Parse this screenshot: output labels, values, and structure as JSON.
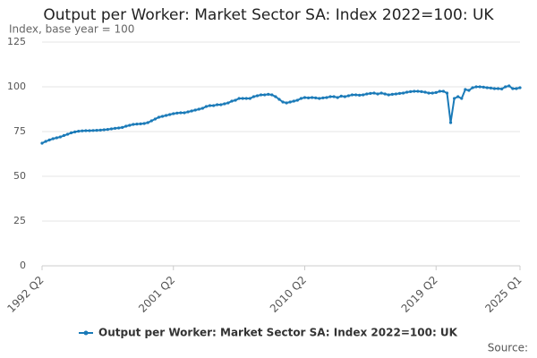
{
  "chart_data": {
    "type": "line",
    "title": "Output per Worker: Market Sector SA: Index 2022=100: UK",
    "subtitle": "Index, base year = 100",
    "source": "Source:",
    "categories": [
      "1992 Q2",
      null,
      null,
      null,
      null,
      null,
      null,
      null,
      null,
      null,
      null,
      null,
      null,
      null,
      null,
      null,
      null,
      null,
      null,
      null,
      null,
      null,
      null,
      null,
      null,
      null,
      null,
      null,
      null,
      null,
      null,
      null,
      null,
      null,
      null,
      null,
      "2001 Q2",
      null,
      null,
      null,
      null,
      null,
      null,
      null,
      null,
      null,
      null,
      null,
      null,
      null,
      null,
      null,
      null,
      null,
      null,
      null,
      null,
      null,
      null,
      null,
      null,
      null,
      null,
      null,
      null,
      null,
      null,
      null,
      null,
      null,
      null,
      null,
      "2010 Q2",
      null,
      null,
      null,
      null,
      null,
      null,
      null,
      null,
      null,
      null,
      null,
      null,
      null,
      null,
      null,
      null,
      null,
      null,
      null,
      null,
      null,
      null,
      null,
      null,
      null,
      null,
      null,
      null,
      null,
      null,
      null,
      null,
      null,
      null,
      null,
      "2019 Q2",
      null,
      null,
      null,
      null,
      null,
      null,
      null,
      null,
      null,
      null,
      null,
      null,
      null,
      null,
      null,
      null,
      null,
      null,
      null,
      null,
      null,
      null,
      "2025 Q1"
    ],
    "series": [
      {
        "name": "Output per Worker: Market Sector SA: Index 2022=100: UK",
        "color": "#1a7ab8",
        "values": [
          68.5,
          69.5,
          70.3,
          71,
          71.5,
          72,
          72.8,
          73.5,
          74.3,
          74.8,
          75.2,
          75.4,
          75.5,
          75.5,
          75.6,
          75.7,
          75.8,
          76,
          76.2,
          76.5,
          76.8,
          77,
          77.3,
          78,
          78.5,
          79,
          79.2,
          79.3,
          79.5,
          80,
          81,
          82,
          83,
          83.5,
          84,
          84.5,
          85,
          85.3,
          85.5,
          85.5,
          86,
          86.5,
          87,
          87.5,
          88,
          89,
          89.5,
          89.5,
          90,
          90,
          90.5,
          91,
          92,
          92.5,
          93.5,
          93.5,
          93.5,
          93.5,
          94.5,
          95,
          95.5,
          95.5,
          95.8,
          95.5,
          94.5,
          93,
          91.5,
          91,
          91.5,
          92,
          92.5,
          93.5,
          94,
          93.8,
          94,
          93.8,
          93.5,
          93.8,
          94,
          94.5,
          94.5,
          94,
          94.8,
          94.5,
          95,
          95.5,
          95.5,
          95.3,
          95.5,
          96,
          96.3,
          96.5,
          96,
          96.5,
          96,
          95.5,
          95.8,
          96,
          96.3,
          96.5,
          97,
          97.3,
          97.5,
          97.5,
          97.3,
          97,
          96.5,
          96.5,
          96.8,
          97.5,
          97.5,
          96.5,
          80,
          93.5,
          94.5,
          93.5,
          98.5,
          98,
          99.5,
          100,
          100,
          99.8,
          99.5,
          99.3,
          99,
          99,
          98.8,
          100,
          100.5,
          99,
          99,
          99.5
        ]
      }
    ],
    "ylim": [
      0,
      125
    ],
    "yticks": [
      0,
      25,
      50,
      75,
      100,
      125
    ],
    "grid": true,
    "legend": "bottom"
  }
}
